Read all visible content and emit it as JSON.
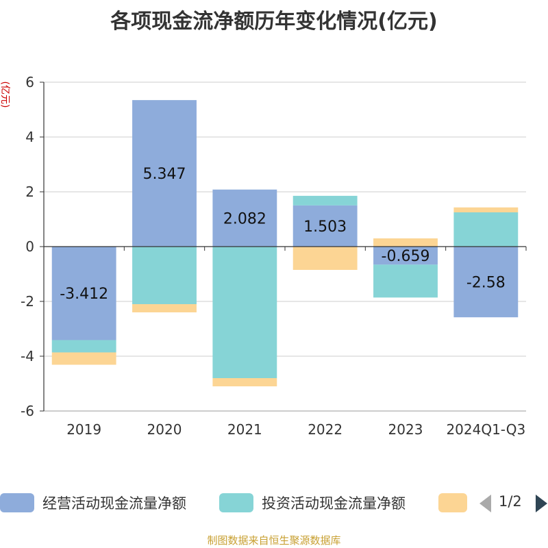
{
  "chart_data": {
    "type": "bar",
    "stacked": true,
    "title": "各项现金流净额历年变化情况(亿元)",
    "ylabel": "(亿元)",
    "ylim": [
      -6,
      6
    ],
    "yticks": [
      6,
      4,
      2,
      0,
      -2,
      -4,
      -6
    ],
    "ytick_labels": [
      "6",
      "4",
      "2",
      "0",
      "-2",
      "-4",
      "-6"
    ],
    "categories": [
      "2019",
      "2020",
      "2021",
      "2022",
      "2023",
      "2024Q1-Q3"
    ],
    "series": [
      {
        "name": "经营活动现金流量净额",
        "color": "#8eacdb",
        "values": [
          -3.412,
          5.347,
          2.082,
          1.503,
          -0.659,
          -2.58
        ]
      },
      {
        "name": "投资活动现金流量净额",
        "color": "#86d4d6",
        "values": [
          -0.45,
          -2.1,
          -4.8,
          0.35,
          -1.2,
          1.25
        ]
      },
      {
        "name": "",
        "color": "#fcd594",
        "values": [
          -0.45,
          -0.3,
          -0.3,
          -0.85,
          0.3,
          0.18
        ]
      }
    ],
    "data_labels": [
      "-3.412",
      "5.347",
      "2.082",
      "1.503",
      "-0.659",
      "-2.58"
    ],
    "grid": true
  },
  "legend": {
    "page": "1/2",
    "items": [
      {
        "label": "经营活动现金流量净额",
        "color": "#8eacdb"
      },
      {
        "label": "投资活动现金流量净额",
        "color": "#86d4d6"
      },
      {
        "label": "",
        "color": "#fcd594"
      }
    ]
  },
  "source": "制图数据来自恒生聚源数据库"
}
